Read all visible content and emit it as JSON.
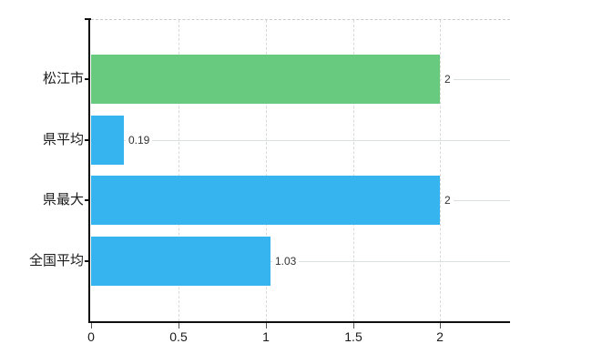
{
  "chart_data": {
    "type": "bar",
    "orientation": "horizontal",
    "title": "",
    "categories": [
      "松江市",
      "県平均",
      "県最大",
      "全国平均"
    ],
    "values": [
      2,
      0.19,
      2,
      1.03
    ],
    "value_labels": [
      "2",
      "0.19",
      "2",
      "1.03"
    ],
    "bar_colors": [
      "#68ca7e",
      "#35b4f0",
      "#35b4f0",
      "#35b4f0"
    ],
    "xlim": [
      0,
      2.4
    ],
    "x_ticks": [
      0,
      0.5,
      1,
      1.5,
      2
    ],
    "x_tick_labels": [
      "0",
      "0.5",
      "1",
      "1.5",
      "2"
    ],
    "legend": "none",
    "grid": "on"
  },
  "colors": {
    "bar_green": "#68ca7e",
    "bar_blue": "#35b4f0",
    "axis": "#0f0f0f",
    "grid_horizontal": "#dae0da",
    "grid_vertical": "#d9d9d9",
    "top_border": "#c9c9c9",
    "axis_label": "#1a1a1a",
    "value_label": "#333333",
    "background": "#ffffff"
  }
}
